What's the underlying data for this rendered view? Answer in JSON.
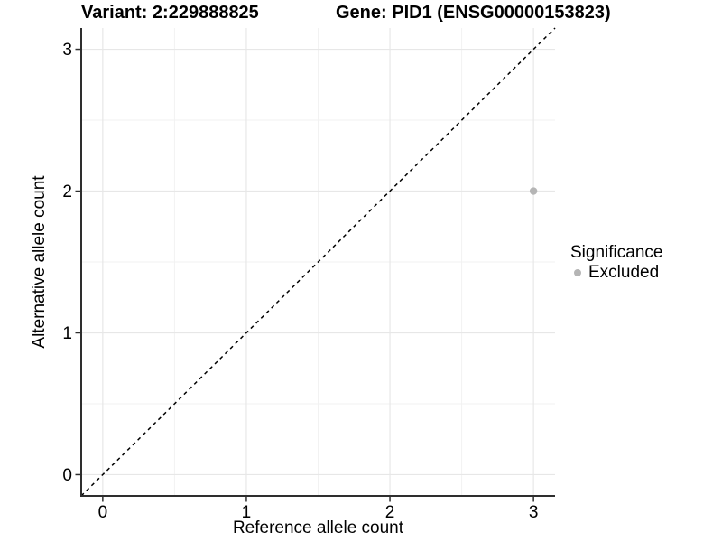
{
  "chart_data": {
    "type": "scatter",
    "title_left": "Variant: 2:229888825",
    "title_right": "Gene: PID1 (ENSG00000153823)",
    "xlabel": "Reference allele count",
    "ylabel": "Alternative allele count",
    "xlim": [
      -0.15,
      3.15
    ],
    "ylim": [
      -0.15,
      3.15
    ],
    "x_ticks": [
      0,
      1,
      2,
      3
    ],
    "y_ticks": [
      0,
      1,
      2,
      3
    ],
    "x_tick_labels": [
      "0",
      "1",
      "2",
      "3"
    ],
    "y_tick_labels": [
      "0",
      "1",
      "2",
      "3"
    ],
    "grid": "major and minor gridlines on, white panel background",
    "reference_line": {
      "style": "dashed",
      "color": "#000000",
      "slope": 1,
      "intercept": 0
    },
    "series": [
      {
        "name": "Excluded",
        "marker": "circle",
        "color": "#b5b5b5",
        "points": [
          {
            "x": 3,
            "y": 2
          }
        ]
      }
    ],
    "legend": {
      "position": "right",
      "title": "Significance",
      "entries": [
        {
          "label": "Excluded",
          "color": "#b5b5b5"
        }
      ]
    },
    "colors": {
      "axis_line": "#2e2e2e",
      "major_grid": "#e7e7e7",
      "minor_grid": "#f2f2f2",
      "text": "#000000"
    }
  }
}
